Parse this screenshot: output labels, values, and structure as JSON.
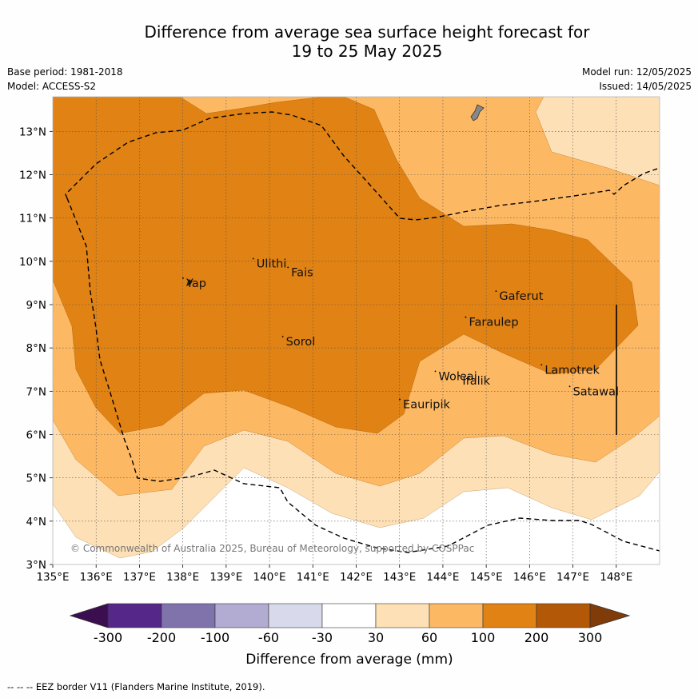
{
  "title": {
    "line1": "Difference from average sea surface height forecast for",
    "line2": "19 to 25 May 2025"
  },
  "meta": {
    "base_period": "Base period: 1981-2018",
    "model": "Model: ACCESS-S2",
    "model_run": "Model run: 12/05/2025",
    "issued": "Issued: 14/05/2025"
  },
  "copyright": "© Commonwealth of Australia 2025, Bureau of Meteorology, supported by COSPPac",
  "footer": "--  --  -- EEZ border V11 (Flanders Marine Institute, 2019).",
  "map": {
    "lon_range": [
      135,
      149
    ],
    "lat_range": [
      3,
      13.8
    ],
    "lon_ticks": [
      {
        "value": 135,
        "label": "135°E"
      },
      {
        "value": 136,
        "label": "136°E"
      },
      {
        "value": 137,
        "label": "137°E"
      },
      {
        "value": 138,
        "label": "138°E"
      },
      {
        "value": 139,
        "label": "139°E"
      },
      {
        "value": 140,
        "label": "140°E"
      },
      {
        "value": 141,
        "label": "141°E"
      },
      {
        "value": 142,
        "label": "142°E"
      },
      {
        "value": 143,
        "label": "143°E"
      },
      {
        "value": 144,
        "label": "144°E"
      },
      {
        "value": 145,
        "label": "145°E"
      },
      {
        "value": 146,
        "label": "146°E"
      },
      {
        "value": 147,
        "label": "147°E"
      },
      {
        "value": 148,
        "label": "148°E"
      }
    ],
    "lat_ticks": [
      {
        "value": 3,
        "label": "3°N"
      },
      {
        "value": 4,
        "label": "4°N"
      },
      {
        "value": 5,
        "label": "5°N"
      },
      {
        "value": 6,
        "label": "6°N"
      },
      {
        "value": 7,
        "label": "7°N"
      },
      {
        "value": 8,
        "label": "8°N"
      },
      {
        "value": 9,
        "label": "9°N"
      },
      {
        "value": 10,
        "label": "10°N"
      },
      {
        "value": 11,
        "label": "11°N"
      },
      {
        "value": 12,
        "label": "12°N"
      },
      {
        "value": 13,
        "label": "13°N"
      }
    ],
    "grid": true,
    "places": [
      {
        "name": "Yap",
        "lon": 138.08,
        "lat": 9.5
      },
      {
        "name": "Ulithi",
        "lon": 139.7,
        "lat": 9.95
      },
      {
        "name": "Fais",
        "lon": 140.5,
        "lat": 9.75
      },
      {
        "name": "Gaferut",
        "lon": 145.3,
        "lat": 9.2
      },
      {
        "name": "Faraulep",
        "lon": 144.6,
        "lat": 8.6
      },
      {
        "name": "Sorol",
        "lon": 140.38,
        "lat": 8.15
      },
      {
        "name": "Woleai",
        "lon": 143.9,
        "lat": 7.35
      },
      {
        "name": "Ifalik",
        "lon": 144.45,
        "lat": 7.25
      },
      {
        "name": "Lamotrek",
        "lon": 146.35,
        "lat": 7.5
      },
      {
        "name": "Satawal",
        "lon": 147.0,
        "lat": 7.0
      },
      {
        "name": "Eauripik",
        "lon": 143.08,
        "lat": 6.7
      }
    ]
  },
  "colorbar": {
    "label": "Difference from average (mm)",
    "ticks": [
      "-300",
      "-200",
      "-100",
      "-60",
      "-30",
      "30",
      "60",
      "100",
      "200",
      "300"
    ],
    "colors": [
      "#3b0f4f",
      "#542788",
      "#8073ac",
      "#b2abd2",
      "#d8daeb",
      "#ffffff",
      "#fee0b6",
      "#fdb863",
      "#e08214",
      "#b35806",
      "#7f3b08"
    ]
  }
}
